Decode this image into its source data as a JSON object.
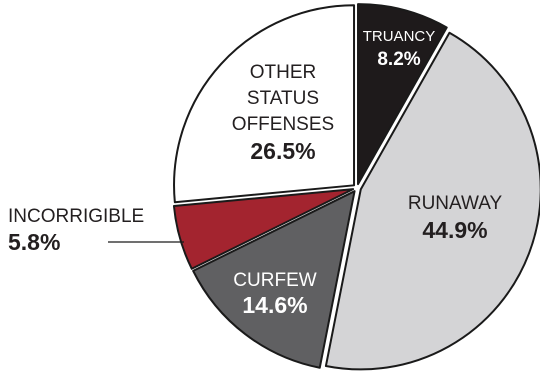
{
  "chart_data": {
    "type": "pie",
    "title": "",
    "exploded": true,
    "slices": [
      {
        "label": "TRUANCY",
        "value": 8.2,
        "value_label": "8.2%",
        "color": "#1e1a1b",
        "text_color": "#ffffff"
      },
      {
        "label": "RUNAWAY",
        "value": 44.9,
        "value_label": "44.9%",
        "color": "#d4d4d6",
        "text_color": "#231f20"
      },
      {
        "label": "CURFEW",
        "value": 14.6,
        "value_label": "14.6%",
        "color": "#606062",
        "text_color": "#ffffff"
      },
      {
        "label": "INCORRIGIBLE",
        "value": 5.8,
        "value_label": "5.8%",
        "color": "#a3242f",
        "text_color": "#231f20"
      },
      {
        "label": "OTHER STATUS OFFENSES",
        "value": 26.5,
        "value_label": "26.5%",
        "color": "#ffffff",
        "text_color": "#231f20"
      }
    ]
  }
}
